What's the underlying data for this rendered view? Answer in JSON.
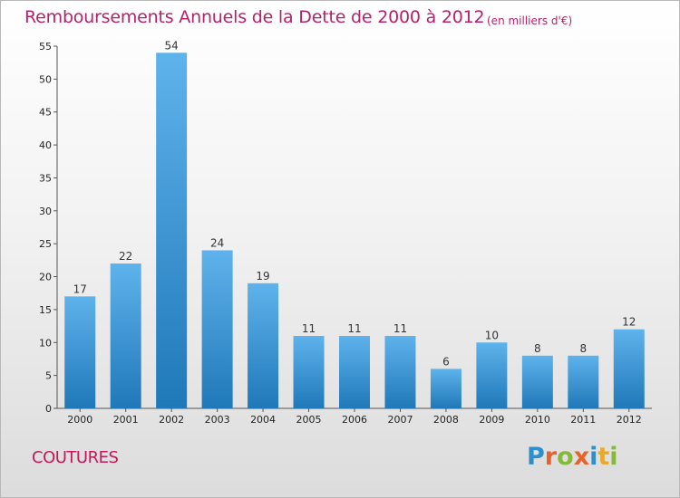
{
  "title": "Remboursements Annuels de la Dette de 2000 à 2012",
  "subtitle": "(en milliers d'€)",
  "commune": "COUTURES",
  "brand": {
    "letters": [
      "P",
      "r",
      "o",
      "x",
      "i",
      "t",
      "i"
    ],
    "colors": [
      "#2e8fcb",
      "#e8632c",
      "#86b83a",
      "#e8632c",
      "#2e8fcb",
      "#e8a92c",
      "#86b83a"
    ]
  },
  "colors": {
    "title": "#b5226b",
    "bar_top": "#5fb3ec",
    "bar_bottom": "#1f78b8"
  },
  "chart_data": {
    "type": "bar",
    "title": "Remboursements Annuels de la Dette de 2000 à 2012",
    "subtitle": "(en milliers d'€)",
    "xlabel": "",
    "ylabel": "",
    "categories": [
      "2000",
      "2001",
      "2002",
      "2003",
      "2004",
      "2005",
      "2006",
      "2007",
      "2008",
      "2009",
      "2010",
      "2011",
      "2012"
    ],
    "values": [
      17,
      22,
      54,
      24,
      19,
      11,
      11,
      11,
      6,
      10,
      8,
      8,
      12
    ],
    "ylim": [
      0,
      55
    ],
    "yticks": [
      0,
      5,
      10,
      15,
      20,
      25,
      30,
      35,
      40,
      45,
      50,
      55
    ],
    "grid": false,
    "legend": "none"
  }
}
